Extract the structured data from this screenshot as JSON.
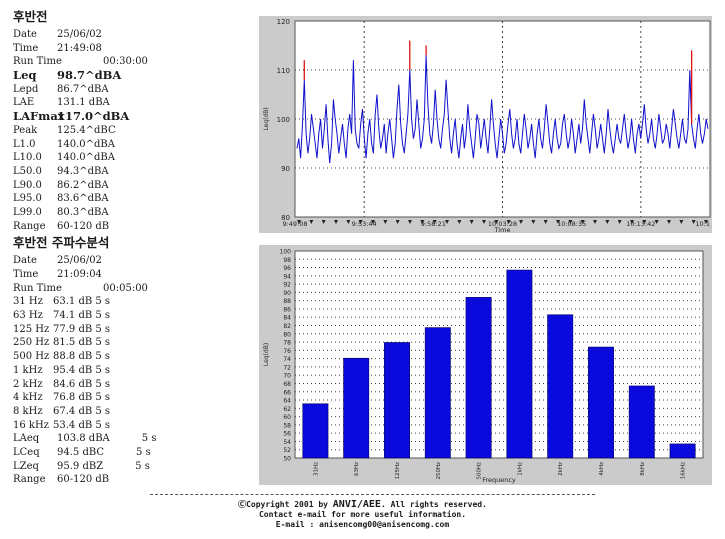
{
  "section1": {
    "title": "후반전",
    "date_label": "Date",
    "date": "25/06/02",
    "time_label": "Time",
    "time": "21:49:08",
    "runtime_label": "Run Time",
    "runtime": "00:30:00",
    "rows": [
      {
        "key": "Leq",
        "value": "98.7^dBA",
        "bold": true
      },
      {
        "key": "Lepd",
        "value": "86.7^dBA",
        "bold": false
      },
      {
        "key": "LAE",
        "value": "131.1 dBA",
        "bold": false
      },
      {
        "key": "LAFmax",
        "value": "117.0^dBA",
        "bold": true
      },
      {
        "key": "Peak",
        "value": "125.4^dBC",
        "bold": false
      },
      {
        "key": "L1.0",
        "value": "140.0^dBA",
        "bold": false
      },
      {
        "key": "L10.0",
        "value": "140.0^dBA",
        "bold": false
      },
      {
        "key": "L50.0",
        "value": "94.3^dBA",
        "bold": false
      },
      {
        "key": "L90.0",
        "value": "86.2^dBA",
        "bold": false
      },
      {
        "key": "L95.0",
        "value": "83.6^dBA",
        "bold": false
      },
      {
        "key": "L99.0",
        "value": "80.3^dBA",
        "bold": false
      },
      {
        "key": "Range",
        "value": "60-120 dB",
        "bold": false
      }
    ]
  },
  "section2": {
    "title": "후반전 주파수분석",
    "date_label": "Date",
    "date": "25/06/02",
    "time_label": "Time",
    "time": "21:09:04",
    "runtime_label": "Run Time",
    "runtime": "00:05:00",
    "freq_rows": [
      {
        "key": "31 Hz",
        "value": "63.1 dB 5 s"
      },
      {
        "key": "63 Hz",
        "value": "74.1 dB 5 s"
      },
      {
        "key": "125 Hz",
        "value": "77.9 dB 5 s"
      },
      {
        "key": "250 Hz",
        "value": "81.5 dB 5 s"
      },
      {
        "key": "500 Hz",
        "value": "88.8 dB 5 s"
      },
      {
        "key": "1 kHz",
        "value": "95.4 dB 5 s"
      },
      {
        "key": "2 kHz",
        "value": "84.6 dB 5 s"
      },
      {
        "key": "4 kHz",
        "value": "76.8 dB 5 s"
      },
      {
        "key": "8 kHz",
        "value": "67.4 dB 5 s"
      },
      {
        "key": "16 kHz",
        "value": "53.4 dB 5 s"
      }
    ],
    "summary_rows": [
      {
        "key": "LAeq",
        "value": "103.8 dBA",
        "time": "5 s"
      },
      {
        "key": "LCeq",
        "value": "94.5 dBC",
        "time": "5 s"
      },
      {
        "key": "LZeq",
        "value": "95.9 dBZ",
        "time": "5 s"
      }
    ],
    "range_label": "Range",
    "range": "60-120 dB"
  },
  "chart_data": [
    {
      "type": "line",
      "title": "",
      "xlabel": "Time",
      "ylabel": "Leq(dB)",
      "ylim": [
        80,
        120
      ],
      "yticks": [
        80,
        90,
        100,
        110,
        120
      ],
      "xtick_labels": [
        "9:49:08",
        "9:53:44",
        "9:58:21",
        "10:03:28",
        "10:08:35",
        "10:13:42",
        "10:1"
      ],
      "grid": true,
      "series": [
        {
          "color": "#1010cc",
          "values": [
            94,
            96,
            92,
            99,
            108,
            97,
            93,
            96,
            101,
            98,
            95,
            92,
            97,
            100,
            94,
            98,
            103,
            96,
            91,
            95,
            104,
            100,
            97,
            93,
            96,
            99,
            95,
            92,
            98,
            101,
            97,
            112,
            98,
            95,
            94,
            99,
            102,
            96,
            92,
            97,
            100,
            95,
            93,
            101,
            105,
            98,
            94,
            96,
            99,
            93,
            97,
            100,
            96,
            92,
            95,
            102,
            107,
            99,
            95,
            93,
            97,
            101,
            110,
            100,
            96,
            98,
            104,
            99,
            94,
            96,
            100,
            113,
            103,
            97,
            95,
            99,
            106,
            100,
            96,
            94,
            98,
            101,
            108,
            102,
            96,
            93,
            97,
            100,
            95,
            92,
            96,
            99,
            94,
            97,
            103,
            98,
            95,
            92,
            96,
            101,
            99,
            94,
            97,
            100,
            96,
            93,
            98,
            104,
            99,
            95,
            92,
            96,
            100,
            97,
            93,
            95,
            99,
            102,
            97,
            94,
            96,
            100,
            95,
            93,
            97,
            101,
            98,
            94,
            96,
            99,
            95,
            92,
            97,
            100,
            96,
            94,
            98,
            103,
            99,
            95,
            93,
            97,
            100,
            96,
            94,
            95,
            99,
            101,
            97,
            94,
            96,
            100,
            97,
            93,
            96,
            99,
            95,
            98,
            104,
            99,
            96,
            93,
            97,
            101,
            98,
            94,
            96,
            99,
            96,
            93,
            97,
            102,
            98,
            95,
            93,
            96,
            99,
            96,
            95,
            98,
            101,
            97,
            94,
            96,
            100,
            96,
            93,
            97,
            99,
            96,
            99,
            103,
            98,
            95,
            97,
            100,
            96,
            94,
            97,
            101,
            98,
            95,
            96,
            99,
            97,
            94,
            98,
            102,
            99,
            96,
            94,
            97,
            100,
            96,
            95,
            98,
            110,
            99,
            96,
            94,
            98,
            101,
            97,
            95,
            97,
            100,
            98
          ]
        },
        {
          "color": "#e01010",
          "values": [
            null,
            null,
            null,
            null,
            112,
            null,
            null,
            null,
            null,
            null,
            null,
            null,
            null,
            null,
            null,
            null,
            null,
            null,
            null,
            null,
            null,
            null,
            null,
            null,
            null,
            null,
            null,
            null,
            null,
            null,
            null,
            null,
            null,
            null,
            null,
            null,
            null,
            null,
            null,
            null,
            null,
            null,
            null,
            null,
            null,
            null,
            null,
            null,
            null,
            null,
            null,
            null,
            null,
            null,
            null,
            null,
            null,
            null,
            null,
            null,
            null,
            null,
            116,
            null,
            null,
            null,
            null,
            null,
            null,
            null,
            null,
            115,
            null,
            null,
            null,
            null,
            null,
            null,
            null,
            null,
            null,
            null,
            null,
            null,
            null,
            null,
            null,
            null,
            null,
            null,
            null,
            null,
            null,
            null,
            null,
            null,
            null,
            null,
            null,
            null,
            null,
            null,
            null,
            null,
            null,
            null,
            null,
            null,
            null,
            null,
            null,
            null,
            null,
            null,
            null,
            null,
            null,
            null,
            null,
            null,
            null,
            null,
            null,
            null,
            null,
            null,
            null,
            null,
            null,
            null,
            null,
            null,
            null,
            null,
            null,
            null,
            null,
            null,
            null,
            null,
            null,
            null,
            null,
            null,
            null,
            null,
            null,
            null,
            null,
            null,
            null,
            null,
            null,
            null,
            null,
            null,
            null,
            null,
            null,
            null,
            null,
            null,
            null,
            null,
            null,
            null,
            null,
            null,
            null,
            null,
            null,
            null,
            null,
            null,
            null,
            null,
            null,
            null,
            null,
            null,
            null,
            null,
            null,
            null,
            null,
            null,
            null,
            null,
            null,
            null,
            null,
            null,
            null,
            null,
            null,
            null,
            null,
            null,
            null,
            null,
            null,
            null,
            null,
            null,
            null,
            null,
            null,
            null,
            null,
            null,
            null,
            null,
            null,
            null,
            null,
            null,
            null,
            114,
            null,
            null,
            null,
            null,
            null,
            null,
            null,
            null,
            null
          ]
        }
      ]
    },
    {
      "type": "bar",
      "title": "",
      "xlabel": "Frequency",
      "ylabel": "Leq(dB)",
      "ylim": [
        50,
        100
      ],
      "categories": [
        "31Hz",
        "63Hz",
        "125Hz",
        "250Hz",
        "500Hz",
        "1kHz",
        "2kHz",
        "4kHz",
        "8kHz",
        "16kHz"
      ],
      "values": [
        63.1,
        74.1,
        77.9,
        81.5,
        88.8,
        95.4,
        84.6,
        76.8,
        67.4,
        53.4
      ],
      "color": "#0a0adc",
      "grid": true
    }
  ],
  "footer": {
    "copyright_prefix": "ⒸCopyright 2001 by ",
    "brand": "ANVI/AEE",
    "copyright_suffix": ". All rights reserved.",
    "contact": "Contact e-mail for more useful information.",
    "email": "E-mail : anisencomg00@anisencomg.com"
  }
}
